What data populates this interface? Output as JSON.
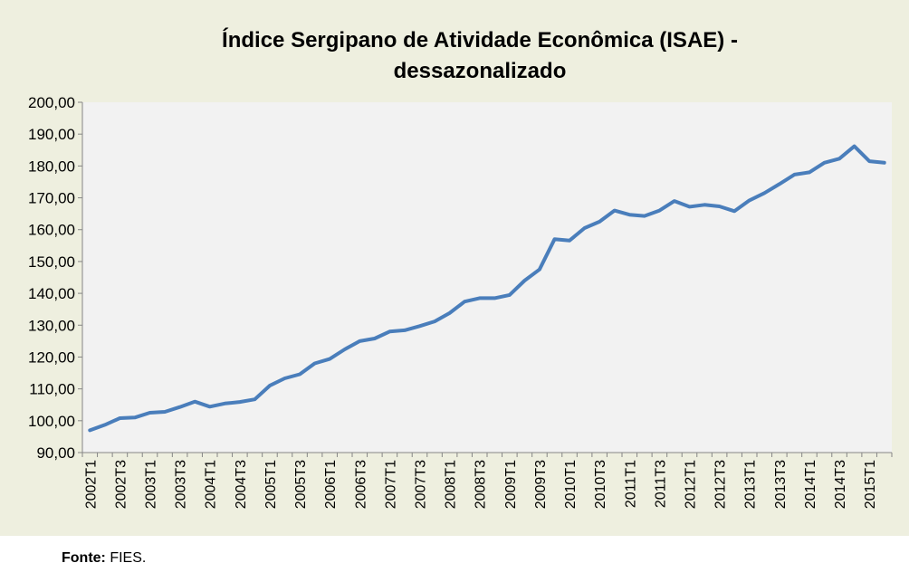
{
  "chart_data": {
    "type": "line",
    "title_line1": "Índice Sergipano de Atividade Econômica (ISAE) -",
    "title_line2": "dessazonalizado",
    "xlabel": "",
    "ylabel": "",
    "ylim": [
      90,
      200
    ],
    "yticks": [
      "90,00",
      "100,00",
      "110,00",
      "120,00",
      "130,00",
      "140,00",
      "150,00",
      "160,00",
      "170,00",
      "180,00",
      "190,00",
      "200,00"
    ],
    "x": [
      "2002T1",
      "2002T2",
      "2002T3",
      "2002T4",
      "2003T1",
      "2003T2",
      "2003T3",
      "2003T4",
      "2004T1",
      "2004T2",
      "2004T3",
      "2004T4",
      "2005T1",
      "2005T2",
      "2005T3",
      "2005T4",
      "2006T1",
      "2006T2",
      "2006T3",
      "2006T4",
      "2007T1",
      "2007T2",
      "2007T3",
      "2007T4",
      "2008T1",
      "2008T2",
      "2008T3",
      "2008T4",
      "2009T1",
      "2009T2",
      "2009T3",
      "2009T4",
      "2010T1",
      "2010T2",
      "2010T3",
      "2010T4",
      "2011T1",
      "2011T2",
      "2011T3",
      "2011T4",
      "2012T1",
      "2012T2",
      "2012T3",
      "2012T4",
      "2013T1",
      "2013T2",
      "2013T3",
      "2013T4",
      "2014T1",
      "2014T2",
      "2014T3",
      "2014T4",
      "2015T1",
      "2015T2"
    ],
    "series": [
      {
        "name": "ISAE",
        "color": "#4a7ebb",
        "values": [
          97.0,
          98.7,
          100.8,
          101.0,
          102.5,
          102.8,
          104.3,
          106.0,
          104.4,
          105.4,
          105.9,
          106.7,
          111.0,
          113.3,
          114.6,
          118.0,
          119.4,
          122.4,
          125.0,
          125.8,
          128.0,
          128.4,
          129.7,
          131.2,
          133.8,
          137.4,
          138.5,
          138.5,
          139.5,
          144.0,
          147.5,
          157.0,
          156.6,
          160.5,
          162.5,
          166.0,
          164.7,
          164.3,
          166.0,
          169.0,
          167.2,
          167.8,
          167.3,
          165.8,
          169.2,
          171.5,
          174.3,
          177.3,
          178.0,
          181.0,
          182.3,
          186.2,
          181.5,
          181.0
        ]
      }
    ],
    "grid": true,
    "legend": "none"
  },
  "footer": {
    "source_label": "Fonte:",
    "source_value": " FIES."
  }
}
